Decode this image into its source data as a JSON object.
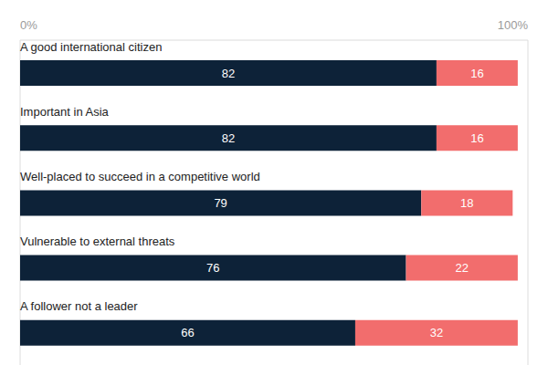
{
  "chart_data": {
    "type": "bar",
    "orientation": "horizontal",
    "stacked": true,
    "data_labels": true,
    "grid": true,
    "categories": [
      "A good international citizen",
      "Important in Asia",
      "Well-placed to succeed in a competitive world",
      "Vulnerable to external threats",
      "A follower not a leader"
    ],
    "series": [
      {
        "color": "#0d2238",
        "values": [
          82,
          82,
          79,
          76,
          66
        ]
      },
      {
        "color": "#f26d6d",
        "values": [
          16,
          16,
          18,
          22,
          32
        ]
      }
    ],
    "xlim": [
      0,
      100
    ],
    "xticks": [
      {
        "value": 0,
        "label": "0%"
      },
      {
        "value": 100,
        "label": "100%"
      }
    ]
  }
}
